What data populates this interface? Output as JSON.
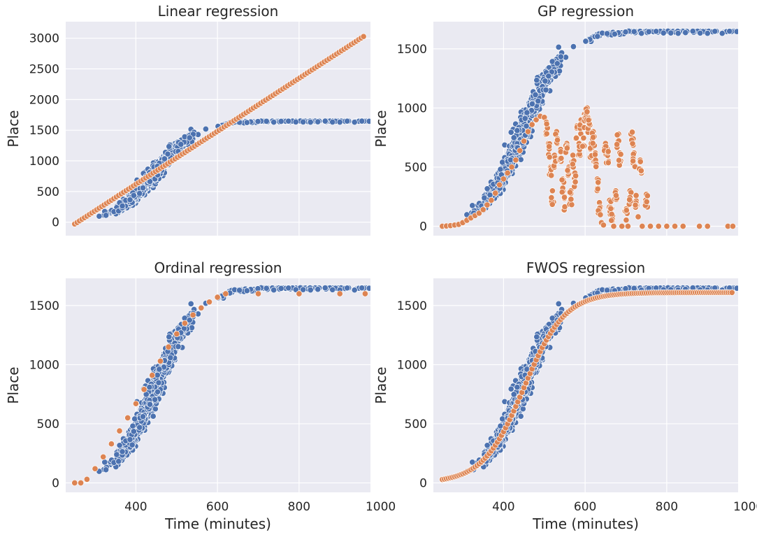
{
  "figure": {
    "palette": {
      "actual": "#4c72b0",
      "predicted": "#dd8452",
      "panel_bg": "#eaeaf2",
      "grid": "#ffffff"
    }
  },
  "chart_data": [
    {
      "type": "scatter",
      "title": "Linear regression",
      "ylabel": "Place",
      "xlabel": "",
      "xlim": [
        228,
        975
      ],
      "ylim": [
        -220,
        3270
      ],
      "yticks": [
        0,
        500,
        1000,
        1500,
        2000,
        2500,
        3000
      ],
      "xticks": [
        400,
        600,
        800,
        1000
      ],
      "xtick_labels_visible": false,
      "grid": true,
      "series": [
        {
          "role": "actual",
          "color": "#4c72b0",
          "shape": "logistic",
          "L": 1650,
          "x0": 450,
          "k": 0.02,
          "cloud_spread": 0.075
        },
        {
          "role": "predicted",
          "color": "#dd8452",
          "shape": "linear",
          "slope": 4.32,
          "intercept": -1110,
          "x_range": [
            250,
            962
          ]
        }
      ]
    },
    {
      "type": "scatter",
      "title": "GP regression",
      "ylabel": "Place",
      "xlabel": "",
      "xlim": [
        228,
        975
      ],
      "ylim": [
        -80,
        1730
      ],
      "yticks": [
        0,
        500,
        1000,
        1500
      ],
      "xticks": [
        400,
        600,
        800,
        1000
      ],
      "xtick_labels_visible": false,
      "grid": true,
      "series": [
        {
          "role": "actual",
          "color": "#4c72b0",
          "shape": "logistic",
          "L": 1650,
          "x0": 450,
          "k": 0.02,
          "cloud_spread": 0.075
        },
        {
          "role": "predicted",
          "color": "#dd8452",
          "shape": "gp",
          "points": [
            [
              250,
              0
            ],
            [
              260,
              2
            ],
            [
              270,
              5
            ],
            [
              280,
              10
            ],
            [
              290,
              15
            ],
            [
              300,
              30
            ],
            [
              310,
              50
            ],
            [
              320,
              70
            ],
            [
              330,
              90
            ],
            [
              340,
              110
            ],
            [
              350,
              140
            ],
            [
              360,
              180
            ],
            [
              370,
              220
            ],
            [
              380,
              280
            ],
            [
              390,
              350
            ],
            [
              400,
              400
            ],
            [
              410,
              450
            ],
            [
              420,
              500
            ],
            [
              430,
              560
            ],
            [
              440,
              640
            ],
            [
              450,
              720
            ],
            [
              460,
              800
            ],
            [
              470,
              860
            ],
            [
              480,
              900
            ],
            [
              490,
              930
            ],
            [
              500,
              920
            ],
            [
              505,
              880
            ],
            [
              510,
              700
            ],
            [
              515,
              500
            ],
            [
              520,
              300
            ],
            [
              525,
              600
            ],
            [
              530,
              800
            ],
            [
              540,
              650
            ],
            [
              545,
              400
            ],
            [
              550,
              250
            ],
            [
              555,
              700
            ],
            [
              560,
              500
            ],
            [
              565,
              300
            ],
            [
              570,
              600
            ],
            [
              575,
              450
            ],
            [
              580,
              850
            ],
            [
              585,
              700
            ],
            [
              590,
              900
            ],
            [
              595,
              750
            ],
            [
              600,
              950
            ],
            [
              605,
              1000
            ],
            [
              610,
              900
            ],
            [
              615,
              700
            ],
            [
              620,
              800
            ],
            [
              625,
              620
            ],
            [
              630,
              400
            ],
            [
              635,
              200
            ],
            [
              640,
              30
            ],
            [
              645,
              10
            ],
            [
              650,
              700
            ],
            [
              655,
              650
            ],
            [
              660,
              220
            ],
            [
              665,
              150
            ],
            [
              670,
              0
            ],
            [
              675,
              300
            ],
            [
              680,
              780
            ],
            [
              685,
              620
            ],
            [
              690,
              0
            ],
            [
              700,
              150
            ],
            [
              705,
              0
            ],
            [
              710,
              300
            ],
            [
              715,
              800
            ],
            [
              720,
              620
            ],
            [
              725,
              260
            ],
            [
              730,
              80
            ],
            [
              735,
              560
            ],
            [
              740,
              0
            ],
            [
              750,
              270
            ],
            [
              760,
              0
            ],
            [
              780,
              0
            ],
            [
              800,
              0
            ],
            [
              820,
              0
            ],
            [
              840,
              0
            ],
            [
              880,
              0
            ],
            [
              900,
              0
            ],
            [
              950,
              0
            ],
            [
              962,
              0
            ]
          ]
        }
      ]
    },
    {
      "type": "scatter",
      "title": "Ordinal regression",
      "ylabel": "Place",
      "xlabel": "",
      "xlim": [
        228,
        975
      ],
      "ylim": [
        -80,
        1730
      ],
      "yticks": [
        0,
        500,
        1000,
        1500
      ],
      "xticks": [
        400,
        600,
        800,
        1000
      ],
      "xtick_labels_visible": true,
      "grid": true,
      "series": [
        {
          "role": "actual",
          "color": "#4c72b0",
          "shape": "logistic",
          "L": 1650,
          "x0": 450,
          "k": 0.02,
          "cloud_spread": 0.075
        },
        {
          "role": "predicted",
          "color": "#dd8452",
          "shape": "ordinal",
          "points": [
            [
              250,
              0
            ],
            [
              265,
              0
            ],
            [
              280,
              30
            ],
            [
              300,
              120
            ],
            [
              320,
              220
            ],
            [
              340,
              330
            ],
            [
              360,
              440
            ],
            [
              380,
              550
            ],
            [
              400,
              670
            ],
            [
              420,
              790
            ],
            [
              440,
              910
            ],
            [
              460,
              1030
            ],
            [
              480,
              1150
            ],
            [
              500,
              1260
            ],
            [
              520,
              1350
            ],
            [
              540,
              1420
            ],
            [
              560,
              1480
            ],
            [
              580,
              1530
            ],
            [
              600,
              1570
            ],
            [
              620,
              1600
            ],
            [
              700,
              1600
            ],
            [
              800,
              1600
            ],
            [
              900,
              1600
            ],
            [
              962,
              1600
            ]
          ]
        }
      ]
    },
    {
      "type": "scatter",
      "title": "FWOS regression",
      "ylabel": "Place",
      "xlabel": "",
      "xlim": [
        228,
        975
      ],
      "ylim": [
        -80,
        1730
      ],
      "yticks": [
        0,
        500,
        1000,
        1500
      ],
      "xticks": [
        400,
        600,
        800,
        1000
      ],
      "xtick_labels_visible": true,
      "grid": true,
      "series": [
        {
          "role": "actual",
          "color": "#4c72b0",
          "shape": "logistic",
          "L": 1650,
          "x0": 450,
          "k": 0.02,
          "cloud_spread": 0.075
        },
        {
          "role": "predicted",
          "color": "#dd8452",
          "shape": "logistic",
          "L": 1610,
          "x0": 450,
          "k": 0.02,
          "x_range": [
            250,
            962
          ]
        }
      ]
    }
  ],
  "labels": {
    "xlabel_left": "Time (minutes)",
    "xlabel_right": "Time (minutes)"
  }
}
